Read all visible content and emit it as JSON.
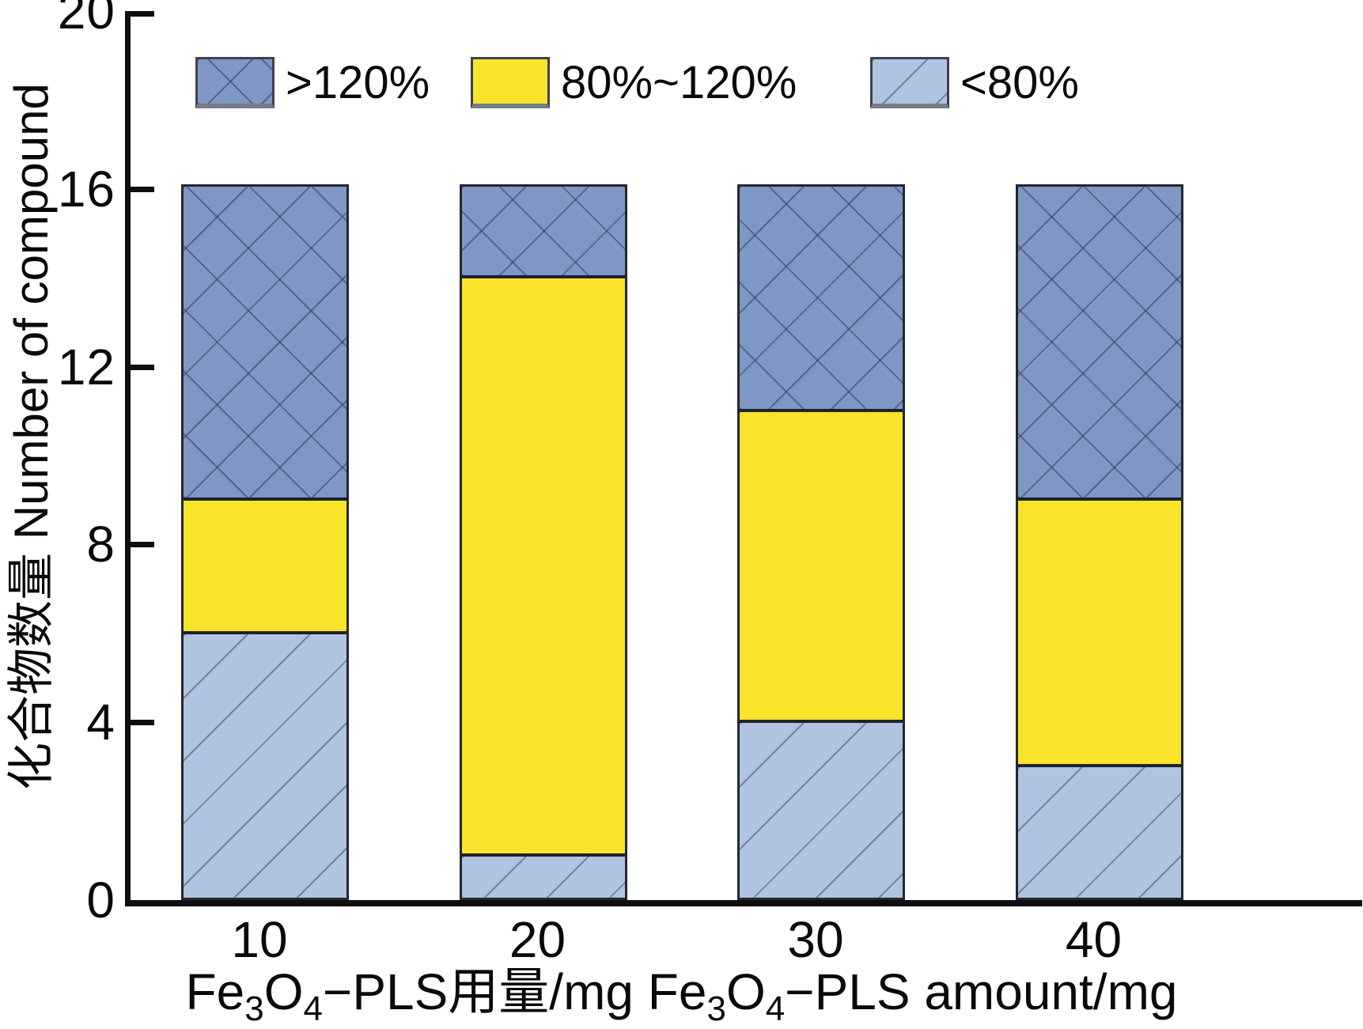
{
  "figure": {
    "background": "#ffffff",
    "axis_color": "#0f0f0f"
  },
  "chart_data": {
    "type": "bar",
    "stacked": true,
    "orientation": "vertical",
    "title": "",
    "ylabel": "化合物数量 Number of compound",
    "xlabel_plain": "Fe3O4−PLS用量/mg  Fe3O4−PLS amount/mg",
    "xlabel_parts": [
      {
        "text": "Fe"
      },
      {
        "text": "3",
        "sub": true
      },
      {
        "text": "O"
      },
      {
        "text": "4",
        "sub": true
      },
      {
        "text": "−PLS用量/mg"
      },
      {
        "text": "  Fe"
      },
      {
        "text": "3",
        "sub": true
      },
      {
        "text": "O"
      },
      {
        "text": "4",
        "sub": true
      },
      {
        "text": "−PLS amount/mg"
      }
    ],
    "ylim": [
      0,
      20
    ],
    "yticks": [
      0,
      4,
      8,
      12,
      16,
      20
    ],
    "grid": false,
    "categories": [
      "10",
      "20",
      "30",
      "40"
    ],
    "series_bottom_to_top": [
      {
        "name": "<80%",
        "values": [
          6,
          1,
          4,
          3
        ],
        "color": "#b0c3e0",
        "hatch": "diagonal",
        "hatch_color": "rgba(70,80,108,0.55)"
      },
      {
        "name": "80%~120%",
        "values": [
          3,
          13,
          7,
          6
        ],
        "color": "#f9e32b",
        "hatch": "none",
        "hatch_color": "transparent"
      },
      {
        "name": ">120%",
        "values": [
          7,
          2,
          5,
          7
        ],
        "color": "#7e97c4",
        "hatch": "cross",
        "hatch_color": "rgba(42,56,90,0.5)"
      }
    ],
    "bar_totals": [
      16,
      16,
      16,
      16
    ],
    "legend_position": "top-inside",
    "legend": {
      "items": [
        {
          "label": ">120%",
          "color": "#7e97c4",
          "hatch": "cross",
          "hatch_color": "rgba(42,56,90,0.5)"
        },
        {
          "label": "80%~120%",
          "color": "#f9e32b",
          "hatch": "none",
          "hatch_color": "transparent"
        },
        {
          "label": "<80%",
          "color": "#b0c3e0",
          "hatch": "diagonal",
          "hatch_color": "rgba(70,80,108,0.55)"
        }
      ]
    }
  }
}
